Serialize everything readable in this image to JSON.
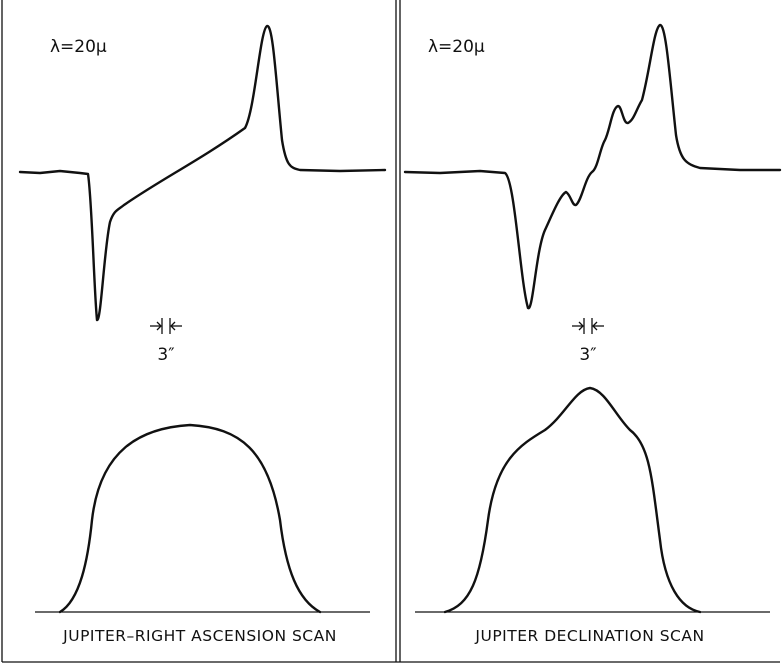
{
  "panels": [
    {
      "wavelength": "λ=20μ",
      "scale": "3″",
      "caption": "JUPITER–RIGHT ASCENSION SCAN"
    },
    {
      "wavelength": "λ=20μ",
      "scale": "3″",
      "caption": "JUPITER DECLINATION SCAN"
    }
  ]
}
